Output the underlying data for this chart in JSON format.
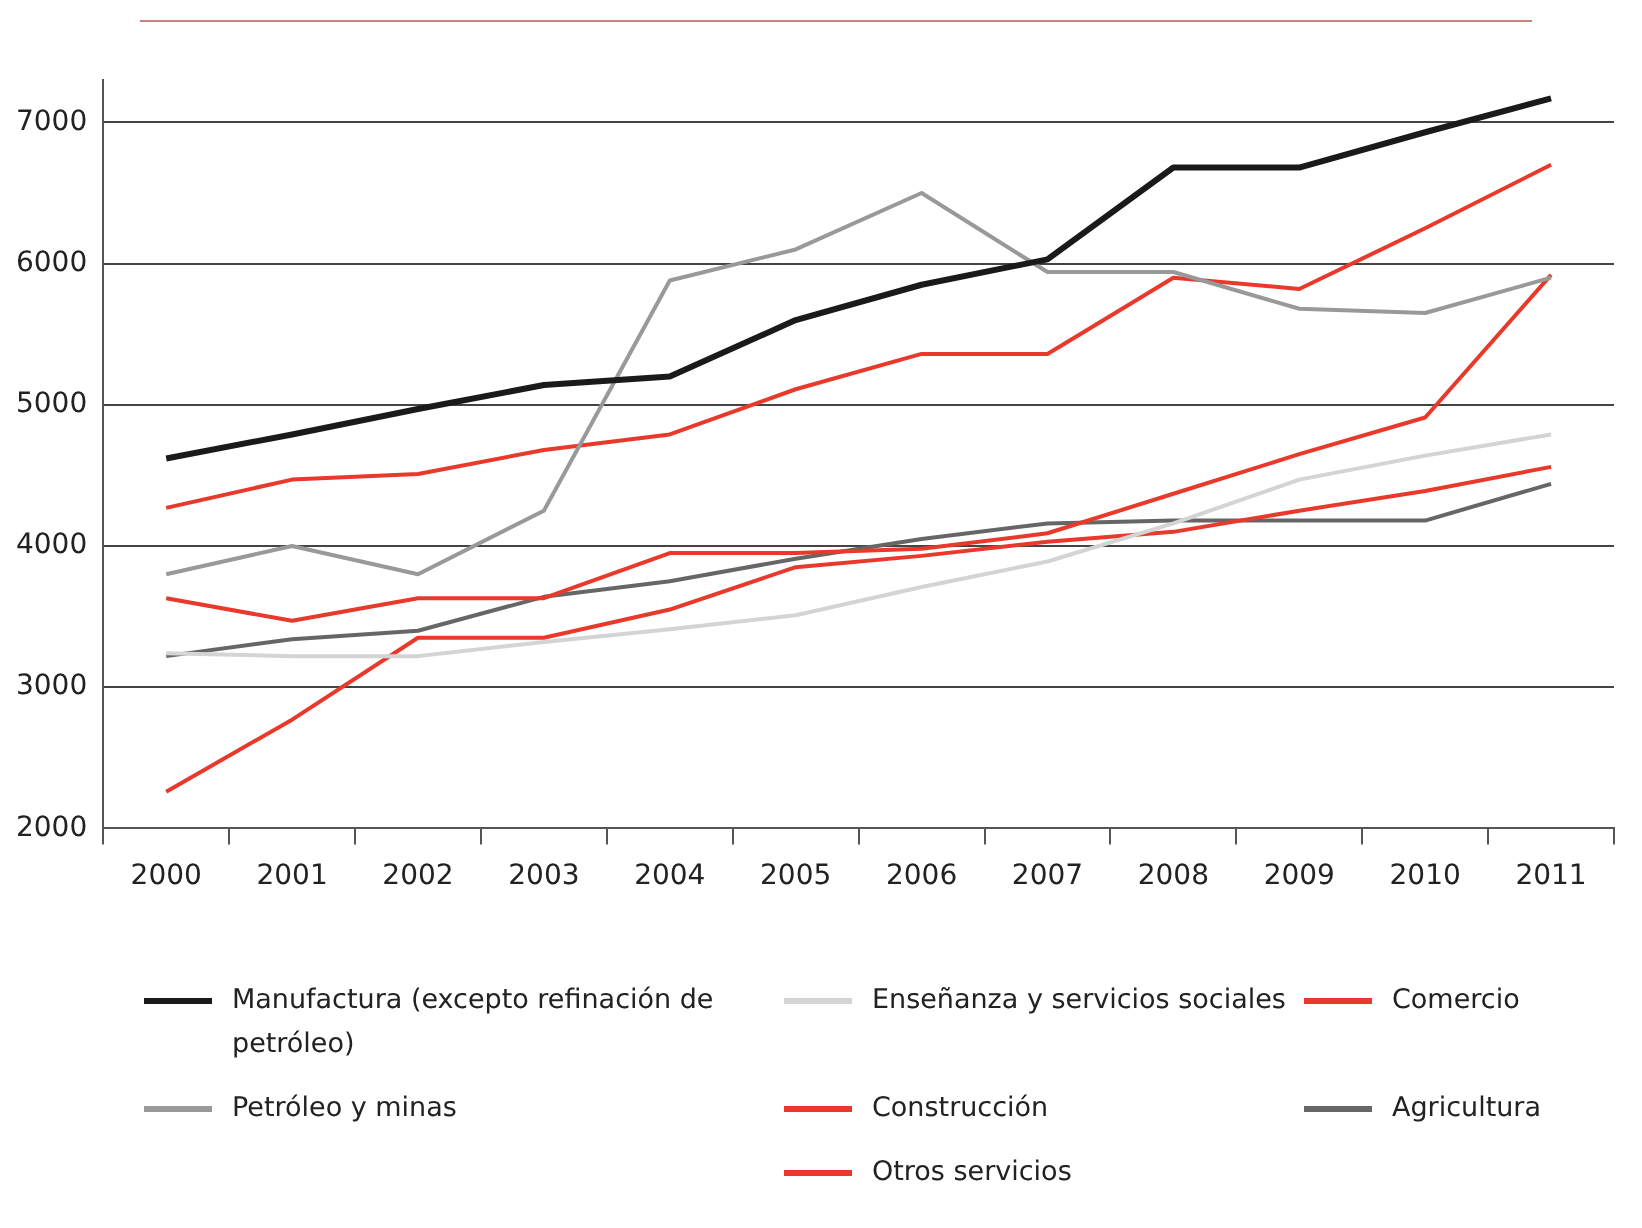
{
  "chart_data": {
    "type": "line",
    "categories": [
      "2000",
      "2001",
      "2002",
      "2003",
      "2004",
      "2005",
      "2006",
      "2007",
      "2008",
      "2009",
      "2010",
      "2011"
    ],
    "series": [
      {
        "name": "Manufactura (excepto refinación de petróleo)",
        "color": "#1a1a1a",
        "values": [
          4620,
          4790,
          4970,
          5140,
          5200,
          5600,
          5850,
          6030,
          6680,
          6680,
          6930,
          7170
        ]
      },
      {
        "name": "Petróleo y minas",
        "color": "#999999",
        "values": [
          3800,
          4000,
          3800,
          4250,
          5880,
          6100,
          6500,
          5940,
          5940,
          5680,
          5650,
          5900
        ]
      },
      {
        "name": "Enseñanza y servicios sociales",
        "color": "#d4d4d4",
        "values": [
          3240,
          3220,
          3220,
          3320,
          3410,
          3510,
          3710,
          3890,
          4160,
          4470,
          4640,
          4790
        ]
      },
      {
        "name": "Construcción",
        "color": "#e8392b",
        "values": [
          3630,
          3470,
          3630,
          3630,
          3950,
          3950,
          3980,
          4090,
          4370,
          4650,
          4910,
          5920
        ]
      },
      {
        "name": "Otros servicios",
        "color": "#e8392b",
        "values": [
          2260,
          2770,
          3350,
          3350,
          3550,
          3850,
          3930,
          4030,
          4100,
          4250,
          4390,
          4560
        ]
      },
      {
        "name": "Comercio",
        "color": "#e8392b",
        "values": [
          4270,
          4470,
          4510,
          4680,
          4790,
          5110,
          5360,
          5360,
          5900,
          5820,
          6250,
          6700
        ]
      },
      {
        "name": "Agricultura",
        "color": "#666666",
        "values": [
          3220,
          3340,
          3400,
          3640,
          3750,
          3910,
          4050,
          4160,
          4180,
          4180,
          4180,
          4440
        ]
      }
    ],
    "ylim": [
      2000,
      7300
    ],
    "yticks": [
      2000,
      3000,
      4000,
      5000,
      6000,
      7000
    ],
    "grid": "y",
    "legend": "bottom",
    "marker": "none",
    "line_style": "solid"
  }
}
